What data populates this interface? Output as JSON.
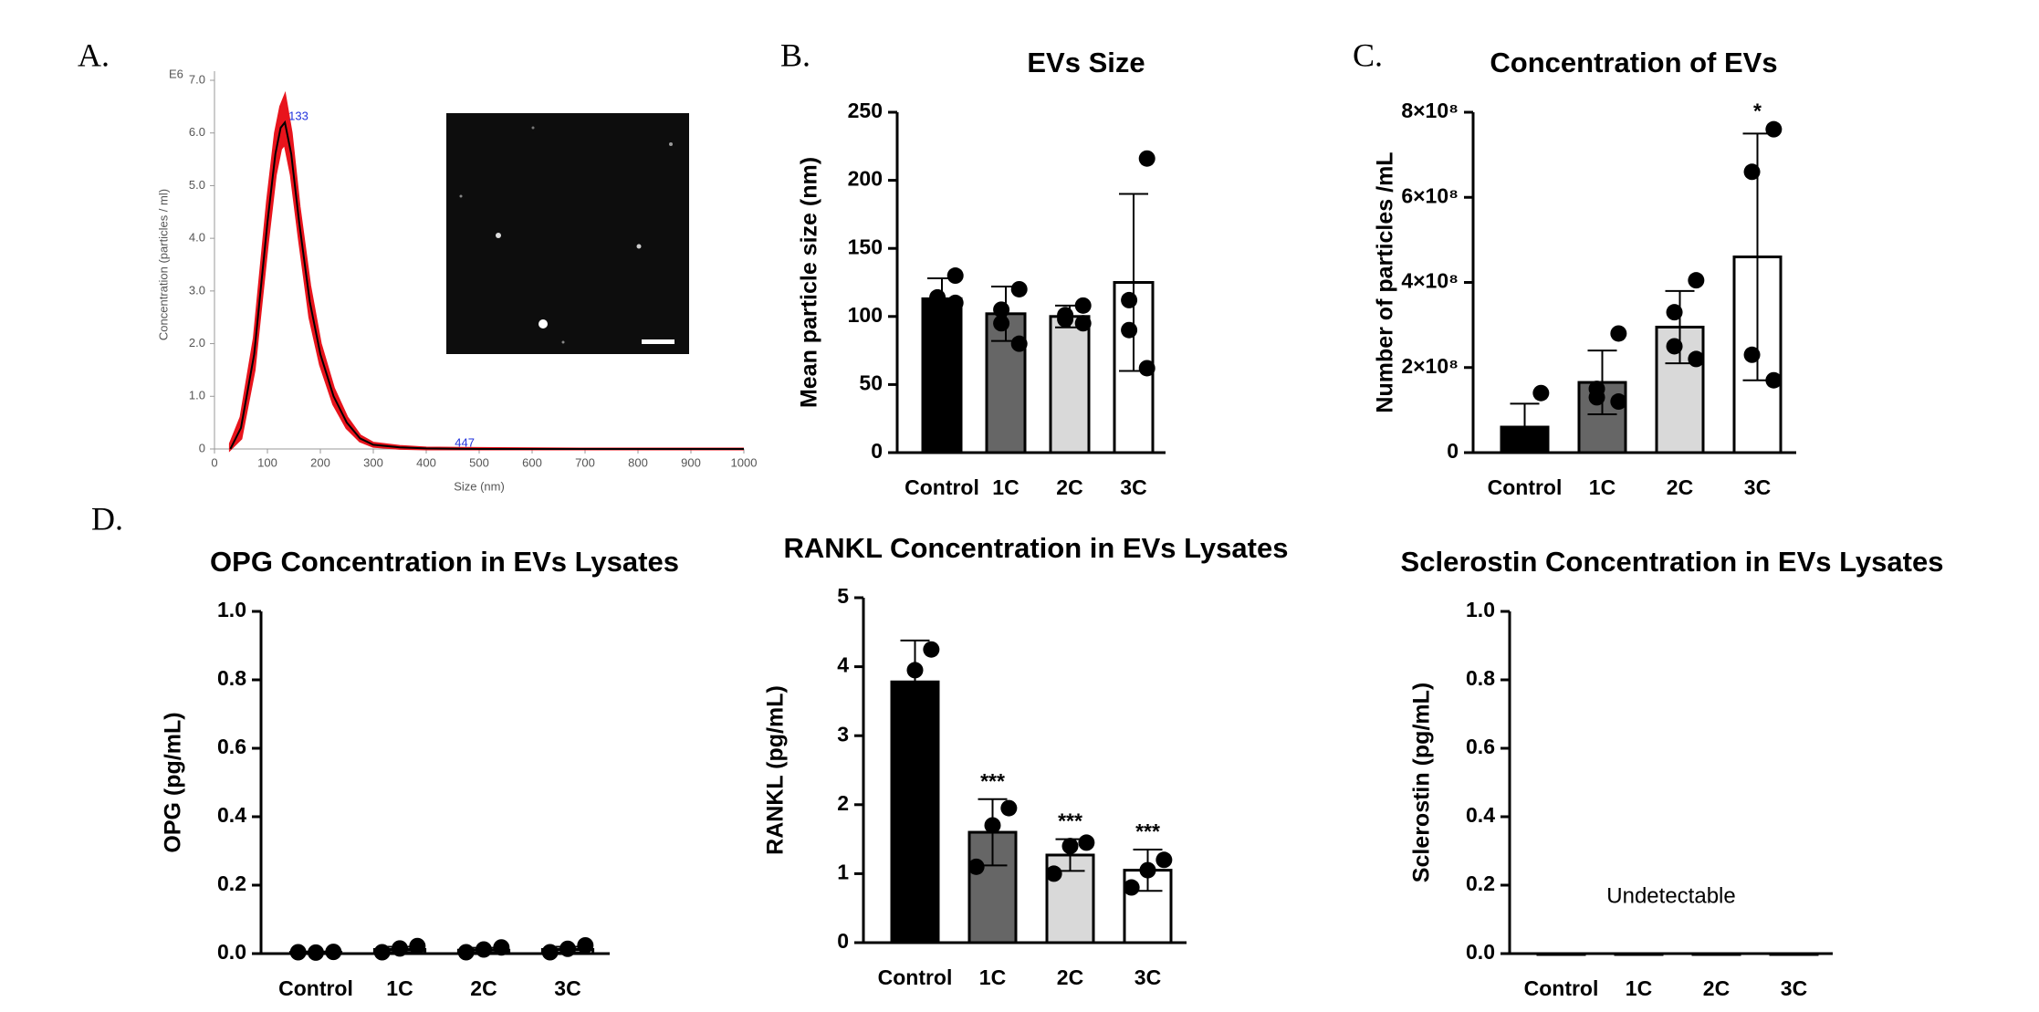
{
  "chart_data": [
    {
      "type": "line",
      "panel": "A.",
      "ylabel": "Concentration (particles / ml)",
      "xlabel": "Size (nm)",
      "y_multiplier": "E6",
      "x": [
        30,
        50,
        75,
        100,
        115,
        125,
        133,
        145,
        160,
        180,
        200,
        225,
        250,
        275,
        300,
        350,
        400,
        500,
        700,
        1000
      ],
      "series": [
        {
          "color": "#000000",
          "values": [
            0,
            0.4,
            1.8,
            4.3,
            5.6,
            6.1,
            6.2,
            5.6,
            4.3,
            2.8,
            1.8,
            1.0,
            0.5,
            0.2,
            0.08,
            0.03,
            0.01,
            0,
            0,
            0
          ]
        },
        {
          "color": "#e8141c",
          "lower": [
            0,
            0.2,
            1.5,
            3.9,
            5.2,
            5.7,
            5.8,
            5.2,
            4.0,
            2.5,
            1.6,
            0.85,
            0.4,
            0.15,
            0.05,
            0.01,
            0,
            0,
            0,
            0
          ],
          "upper": [
            0.1,
            0.6,
            2.1,
            4.7,
            6.0,
            6.5,
            6.7,
            6.0,
            4.6,
            3.1,
            2.0,
            1.15,
            0.6,
            0.25,
            0.11,
            0.05,
            0.02,
            0.01,
            0,
            0
          ]
        }
      ],
      "annotations": [
        {
          "text": "133",
          "x": 133,
          "y": 6.2
        },
        {
          "text": "447",
          "x": 447,
          "y": 0
        }
      ],
      "xlim": [
        0,
        1000
      ],
      "xticks": [
        0,
        100,
        200,
        300,
        400,
        500,
        600,
        700,
        800,
        900,
        1000
      ],
      "ylim": [
        0,
        7
      ],
      "yticks": [
        0,
        {
          "value": 1,
          "label": "1.0"
        },
        {
          "value": 2,
          "label": "2.0"
        },
        {
          "value": 3,
          "label": "3.0"
        },
        {
          "value": 4,
          "label": "4.0"
        },
        {
          "value": 5,
          "label": "5.0"
        },
        {
          "value": 6,
          "label": "6.0"
        },
        {
          "value": 7,
          "label": "7.0"
        }
      ]
    },
    {
      "type": "bar",
      "panel": "B.",
      "title": "EVs Size",
      "ylabel": "Mean particle size (nm)",
      "categories": [
        "Control",
        "1C",
        "2C",
        "3C"
      ],
      "colors": [
        "#000000",
        "#666666",
        "#d9d9d9",
        "#ffffff"
      ],
      "values": [
        113,
        102,
        100,
        125
      ],
      "errors": [
        15,
        20,
        8,
        65
      ],
      "points": [
        [
          130,
          114,
          112,
          110
        ],
        [
          120,
          105,
          95,
          80
        ],
        [
          108,
          101,
          98,
          95
        ],
        [
          216,
          112,
          90,
          62
        ]
      ],
      "ylim": [
        0,
        250
      ],
      "yticks": [
        0,
        50,
        100,
        150,
        200,
        250
      ]
    },
    {
      "type": "bar",
      "panel": "C.",
      "title": "Concentration of EVs",
      "ylabel": "Number of particles /mL",
      "categories": [
        "Control",
        "1C",
        "2C",
        "3C"
      ],
      "colors": [
        "#000000",
        "#666666",
        "#d9d9d9",
        "#ffffff"
      ],
      "values": [
        60000000,
        165000000,
        295000000,
        460000000
      ],
      "errors": [
        55000000,
        75000000,
        85000000,
        290000000
      ],
      "points": [
        [
          140000000,
          40000000,
          30000000,
          30000000
        ],
        [
          280000000,
          150000000,
          130000000,
          120000000
        ],
        [
          405000000,
          330000000,
          250000000,
          220000000
        ],
        [
          760000000,
          660000000,
          230000000,
          170000000
        ]
      ],
      "annotations": [
        null,
        null,
        null,
        "*"
      ],
      "ylim": [
        0,
        800000000
      ],
      "yticks": [
        0,
        {
          "value": 200000000,
          "label": "2×10⁸"
        },
        {
          "value": 400000000,
          "label": "4×10⁸"
        },
        {
          "value": 600000000,
          "label": "6×10⁸"
        },
        {
          "value": 800000000,
          "label": "8×10⁸"
        }
      ]
    },
    {
      "type": "bar",
      "panel": "D.",
      "title": "OPG Concentration in EVs Lysates",
      "ylabel": "OPG (pg/mL)",
      "categories": [
        "Control",
        "1C",
        "2C",
        "3C"
      ],
      "colors": [
        "#000000",
        "#666666",
        "#d9d9d9",
        "#ffffff"
      ],
      "values": [
        0.004,
        0.012,
        0.01,
        0.012
      ],
      "errors": [
        0.002,
        0.008,
        0.007,
        0.008
      ],
      "points": [
        [
          0.005,
          0.003,
          0.004
        ],
        [
          0.022,
          0.015,
          0.004
        ],
        [
          0.018,
          0.012,
          0.004
        ],
        [
          0.024,
          0.014,
          0.004
        ]
      ],
      "ylim": [
        0,
        1
      ],
      "yticks": [
        {
          "value": 0,
          "label": "0.0"
        },
        0.2,
        0.4,
        0.6,
        0.8,
        {
          "value": 1,
          "label": "1.0"
        }
      ]
    },
    {
      "type": "bar",
      "title": "RANKL Concentration in EVs Lysates",
      "ylabel": "RANKL (pg/mL)",
      "categories": [
        "Control",
        "1C",
        "2C",
        "3C"
      ],
      "colors": [
        "#000000",
        "#666666",
        "#d9d9d9",
        "#ffffff"
      ],
      "values": [
        3.78,
        1.6,
        1.27,
        1.05
      ],
      "errors": [
        0.6,
        0.48,
        0.23,
        0.3
      ],
      "points": [
        [
          4.25,
          3.95,
          3.15
        ],
        [
          1.95,
          1.7,
          1.1
        ],
        [
          1.45,
          1.4,
          1.0
        ],
        [
          1.2,
          1.05,
          0.8
        ]
      ],
      "annotations": [
        null,
        "***",
        "***",
        "***"
      ],
      "ylim": [
        0,
        5
      ],
      "yticks": [
        0,
        1,
        2,
        3,
        4,
        5
      ]
    },
    {
      "type": "bar",
      "title": "Sclerostin Concentration in EVs Lysates",
      "ylabel": "Sclerostin (pg/mL)",
      "note": "Undetectable",
      "categories": [
        "Control",
        "1C",
        "2C",
        "3C"
      ],
      "colors": [
        "#000000",
        "#666666",
        "#d9d9d9",
        "#ffffff"
      ],
      "values": [
        0,
        0,
        0,
        0
      ],
      "ylim": [
        0,
        1
      ],
      "yticks": [
        {
          "value": 0,
          "label": "0.0"
        },
        0.2,
        0.4,
        0.6,
        0.8,
        {
          "value": 1,
          "label": "1.0"
        }
      ]
    }
  ]
}
